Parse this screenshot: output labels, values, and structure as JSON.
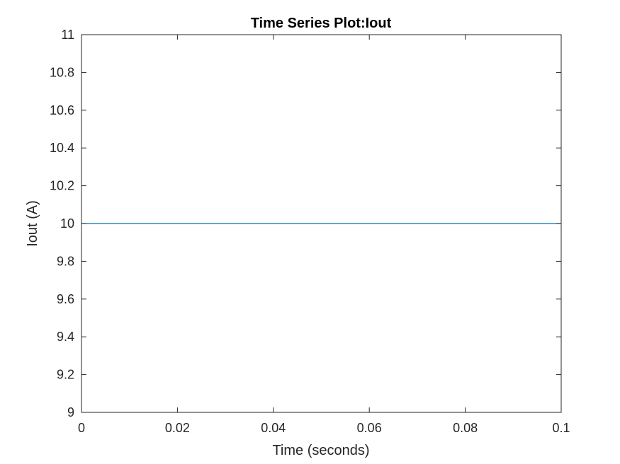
{
  "chart_data": {
    "type": "line",
    "title": "Time Series Plot:Iout",
    "xlabel": "Time (seconds)",
    "ylabel": "Iout (A)",
    "xlim": [
      0,
      0.1
    ],
    "ylim": [
      9,
      11
    ],
    "x_ticks": [
      0,
      0.02,
      0.04,
      0.06,
      0.08,
      0.1
    ],
    "x_tick_labels": [
      "0",
      "0.02",
      "0.04",
      "0.06",
      "0.08",
      "0.1"
    ],
    "y_ticks": [
      9,
      9.2,
      9.4,
      9.6,
      9.8,
      10,
      10.2,
      10.4,
      10.6,
      10.8,
      11
    ],
    "y_tick_labels": [
      "9",
      "9.2",
      "9.4",
      "9.6",
      "9.8",
      "10",
      "10.2",
      "10.4",
      "10.6",
      "10.8",
      "11"
    ],
    "grid": false,
    "box": true,
    "colors": {
      "line": "#0072bd",
      "axes": "#262626"
    },
    "series": [
      {
        "x": [
          0,
          0.1
        ],
        "y": [
          10,
          10
        ]
      }
    ]
  }
}
